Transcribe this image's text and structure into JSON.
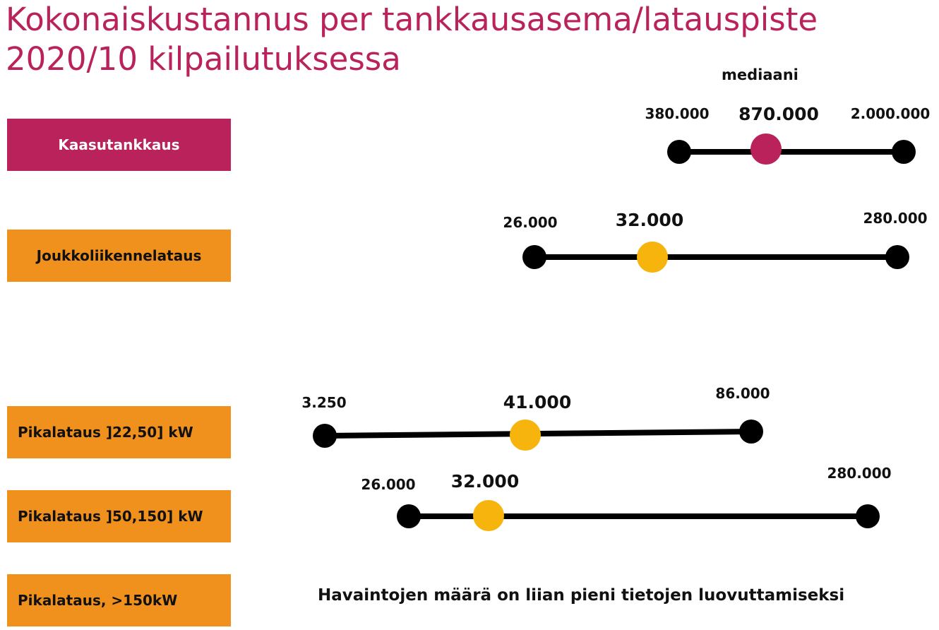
{
  "title": {
    "line1": "Kokonaiskustannus per tankkausasema/latauspiste",
    "line2": "2020/10 kilpailutuksessa"
  },
  "median_header": "mediaani",
  "note": "Havaintojen määrä on liian pieni tietojen luovuttamiseksi",
  "colors": {
    "title": "#b9225a",
    "gas": "#b9225a",
    "charging": "#f0901d",
    "median_charging": "#f6b40c",
    "line": "#000000"
  },
  "categories": [
    "Kaasutankkaus",
    "Joukkoliikennelataus",
    "Pikalataus ]22,50] kW",
    "Pikalataus ]50,150] kW",
    "Pikalataus, >150kW"
  ],
  "chart_data": {
    "type": "range",
    "series": [
      {
        "category": "Kaasutankkaus",
        "min": 380000,
        "median": 870000,
        "max": 2000000,
        "min_label": "380.000",
        "median_label": "870.000",
        "max_label": "2.000.000",
        "color": "#b9225a"
      },
      {
        "category": "Joukkoliikennelataus",
        "min": 26000,
        "median": 32000,
        "max": 280000,
        "min_label": "26.000",
        "median_label": "32.000",
        "max_label": "280.000",
        "color": "#f6b40c"
      },
      {
        "category": "Pikalataus ]22,50] kW",
        "min": 3250,
        "median": 41000,
        "max": 86000,
        "min_label": "3.250",
        "median_label": "41.000",
        "max_label": "86.000",
        "color": "#f6b40c"
      },
      {
        "category": "Pikalataus ]50,150] kW",
        "min": 26000,
        "median": 32000,
        "max": 280000,
        "min_label": "26.000",
        "median_label": "32.000",
        "max_label": "280.000",
        "color": "#f6b40c"
      },
      {
        "category": "Pikalataus, >150kW",
        "min": null,
        "median": null,
        "max": null,
        "note": "Havaintojen määrä on liian pieni tietojen luovuttamiseksi"
      }
    ]
  }
}
